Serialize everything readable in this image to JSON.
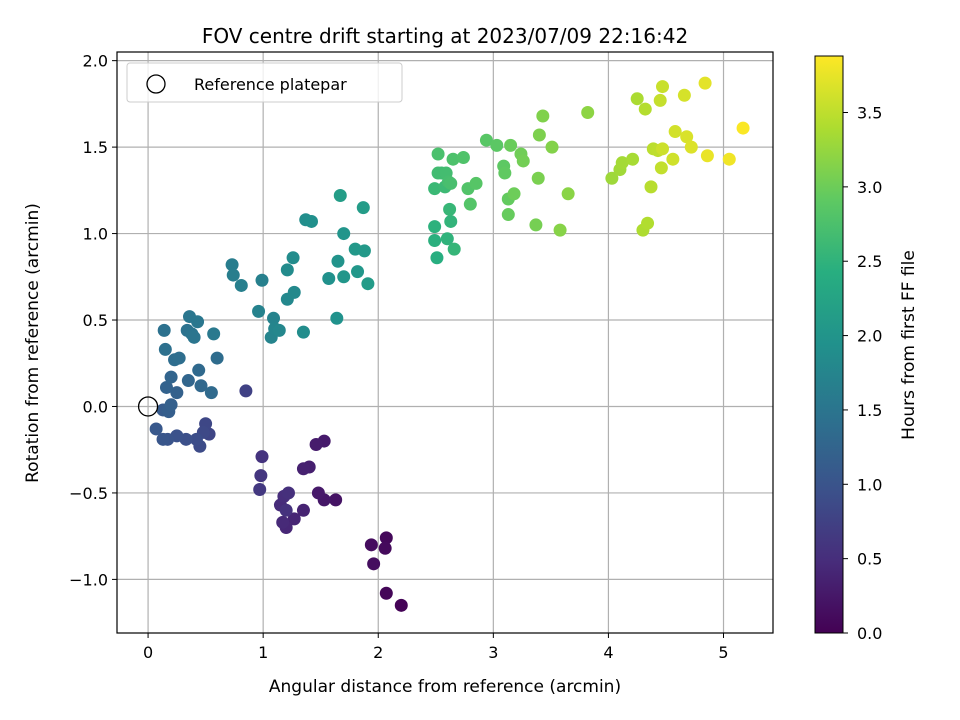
{
  "chart_data": {
    "type": "scatter",
    "title": "FOV centre drift starting at 2023/07/09 22:16:42",
    "xlabel": "Angular distance from reference (arcmin)",
    "ylabel": "Rotation from reference (arcmin)",
    "xlim": [
      -0.27,
      5.43
    ],
    "ylim": [
      -1.31,
      2.05
    ],
    "xticks": [
      0,
      1,
      2,
      3,
      4,
      5
    ],
    "xtick_labels": [
      "0",
      "1",
      "2",
      "3",
      "4",
      "5"
    ],
    "yticks": [
      -1.0,
      -0.5,
      0.0,
      0.5,
      1.0,
      1.5,
      2.0
    ],
    "ytick_labels": [
      "−1.0",
      "−0.5",
      "0.0",
      "0.5",
      "1.0",
      "1.5",
      "2.0"
    ],
    "grid": true,
    "legend": {
      "placement": "top-left",
      "label": "Reference platepar"
    },
    "reference_point": [
      0,
      0
    ],
    "colormap": "viridis",
    "colorbar": {
      "label": "Hours from first FF file",
      "range": [
        0.0,
        3.88
      ],
      "ticks": [
        0.0,
        0.5,
        1.0,
        1.5,
        2.0,
        2.5,
        3.0,
        3.5
      ],
      "tick_labels": [
        "0.0",
        "0.5",
        "1.0",
        "1.5",
        "2.0",
        "2.5",
        "3.0",
        "3.5"
      ]
    },
    "points": [
      [
        2.2,
        -1.15,
        0.02
      ],
      [
        2.07,
        -1.08,
        0.05
      ],
      [
        2.07,
        -0.76,
        0.08
      ],
      [
        2.06,
        -0.82,
        0.1
      ],
      [
        1.94,
        -0.8,
        0.12
      ],
      [
        1.96,
        -0.91,
        0.14
      ],
      [
        1.63,
        -0.54,
        0.2
      ],
      [
        1.53,
        -0.54,
        0.24
      ],
      [
        1.48,
        -0.5,
        0.26
      ],
      [
        1.53,
        -0.2,
        0.28
      ],
      [
        1.46,
        -0.22,
        0.3
      ],
      [
        1.4,
        -0.35,
        0.33
      ],
      [
        1.35,
        -0.36,
        0.35
      ],
      [
        1.35,
        -0.6,
        0.37
      ],
      [
        1.27,
        -0.65,
        0.4
      ],
      [
        1.2,
        -0.7,
        0.42
      ],
      [
        1.17,
        -0.67,
        0.45
      ],
      [
        1.15,
        -0.57,
        0.47
      ],
      [
        1.18,
        -0.52,
        0.5
      ],
      [
        1.22,
        -0.5,
        0.52
      ],
      [
        1.2,
        -0.6,
        0.55
      ],
      [
        0.99,
        -0.29,
        0.57
      ],
      [
        0.98,
        -0.4,
        0.6
      ],
      [
        0.97,
        -0.48,
        0.63
      ],
      [
        0.85,
        0.09,
        0.75
      ],
      [
        0.53,
        -0.16,
        0.8
      ],
      [
        0.5,
        -0.1,
        0.83
      ],
      [
        0.48,
        -0.15,
        0.85
      ],
      [
        0.45,
        -0.23,
        0.88
      ],
      [
        0.42,
        -0.19,
        0.91
      ],
      [
        0.33,
        -0.19,
        0.94
      ],
      [
        0.25,
        -0.17,
        0.97
      ],
      [
        0.17,
        -0.19,
        1.0
      ],
      [
        0.13,
        -0.19,
        1.03
      ],
      [
        0.07,
        -0.13,
        1.06
      ],
      [
        0.13,
        -0.02,
        1.1
      ],
      [
        0.17,
        -0.02,
        1.13
      ],
      [
        0.18,
        -0.03,
        1.15
      ],
      [
        0.2,
        0.01,
        1.18
      ],
      [
        0.25,
        0.08,
        1.2
      ],
      [
        0.16,
        0.11,
        1.22
      ],
      [
        0.2,
        0.17,
        1.25
      ],
      [
        0.35,
        0.15,
        1.27
      ],
      [
        0.46,
        0.12,
        1.3
      ],
      [
        0.44,
        0.21,
        1.32
      ],
      [
        0.55,
        0.08,
        1.34
      ],
      [
        0.6,
        0.28,
        1.36
      ],
      [
        0.23,
        0.27,
        1.38
      ],
      [
        0.27,
        0.28,
        1.4
      ],
      [
        0.15,
        0.33,
        1.42
      ],
      [
        0.14,
        0.44,
        1.44
      ],
      [
        0.34,
        0.44,
        1.46
      ],
      [
        0.38,
        0.42,
        1.48
      ],
      [
        0.4,
        0.4,
        1.5
      ],
      [
        0.36,
        0.52,
        1.52
      ],
      [
        0.43,
        0.49,
        1.54
      ],
      [
        0.57,
        0.42,
        1.56
      ],
      [
        0.73,
        0.82,
        1.62
      ],
      [
        0.74,
        0.76,
        1.64
      ],
      [
        0.81,
        0.7,
        1.66
      ],
      [
        0.99,
        0.73,
        1.68
      ],
      [
        0.96,
        0.55,
        1.7
      ],
      [
        1.09,
        0.51,
        1.72
      ],
      [
        1.07,
        0.4,
        1.74
      ],
      [
        1.1,
        0.45,
        1.76
      ],
      [
        1.14,
        0.44,
        1.78
      ],
      [
        1.21,
        0.62,
        1.8
      ],
      [
        1.27,
        0.66,
        1.82
      ],
      [
        1.21,
        0.79,
        1.84
      ],
      [
        1.26,
        0.86,
        1.86
      ],
      [
        1.35,
        0.43,
        1.88
      ],
      [
        1.37,
        1.08,
        1.9
      ],
      [
        1.42,
        1.07,
        1.92
      ],
      [
        1.57,
        0.74,
        1.94
      ],
      [
        1.64,
        0.51,
        1.96
      ],
      [
        1.65,
        0.84,
        1.98
      ],
      [
        1.7,
        1.0,
        2.0
      ],
      [
        1.7,
        0.75,
        2.02
      ],
      [
        1.82,
        0.78,
        2.04
      ],
      [
        1.8,
        0.91,
        2.06
      ],
      [
        1.88,
        0.9,
        2.08
      ],
      [
        1.91,
        0.71,
        2.1
      ],
      [
        1.87,
        1.15,
        2.12
      ],
      [
        1.67,
        1.22,
        2.14
      ],
      [
        2.51,
        0.86,
        2.42
      ],
      [
        2.49,
        0.96,
        2.45
      ],
      [
        2.49,
        1.04,
        2.47
      ],
      [
        2.6,
        0.97,
        2.5
      ],
      [
        2.63,
        1.07,
        2.52
      ],
      [
        2.66,
        0.91,
        2.55
      ],
      [
        2.62,
        1.14,
        2.57
      ],
      [
        2.49,
        1.26,
        2.6
      ],
      [
        2.58,
        1.27,
        2.62
      ],
      [
        2.55,
        1.35,
        2.64
      ],
      [
        2.52,
        1.35,
        2.66
      ],
      [
        2.59,
        1.35,
        2.68
      ],
      [
        2.61,
        1.3,
        2.7
      ],
      [
        2.63,
        1.29,
        2.72
      ],
      [
        2.52,
        1.46,
        2.74
      ],
      [
        2.65,
        1.43,
        2.76
      ],
      [
        2.74,
        1.44,
        2.78
      ],
      [
        2.78,
        1.26,
        2.8
      ],
      [
        2.8,
        1.17,
        2.82
      ],
      [
        2.85,
        1.29,
        2.84
      ],
      [
        2.94,
        1.54,
        2.86
      ],
      [
        3.03,
        1.51,
        2.88
      ],
      [
        3.09,
        1.39,
        2.9
      ],
      [
        3.1,
        1.35,
        2.92
      ],
      [
        3.13,
        1.2,
        2.94
      ],
      [
        3.13,
        1.11,
        2.96
      ],
      [
        3.15,
        1.51,
        2.98
      ],
      [
        3.18,
        1.23,
        3.0
      ],
      [
        3.24,
        1.46,
        3.02
      ],
      [
        3.26,
        1.42,
        3.04
      ],
      [
        3.37,
        1.05,
        3.06
      ],
      [
        3.39,
        1.32,
        3.08
      ],
      [
        3.4,
        1.57,
        3.1
      ],
      [
        3.43,
        1.68,
        3.12
      ],
      [
        3.51,
        1.5,
        3.14
      ],
      [
        3.58,
        1.02,
        3.16
      ],
      [
        3.65,
        1.23,
        3.18
      ],
      [
        3.82,
        1.7,
        3.2
      ],
      [
        4.03,
        1.32,
        3.3
      ],
      [
        4.1,
        1.37,
        3.32
      ],
      [
        4.12,
        1.41,
        3.34
      ],
      [
        4.21,
        1.43,
        3.36
      ],
      [
        4.25,
        1.78,
        3.38
      ],
      [
        4.3,
        1.02,
        3.4
      ],
      [
        4.34,
        1.06,
        3.42
      ],
      [
        4.32,
        1.72,
        3.44
      ],
      [
        4.37,
        1.27,
        3.46
      ],
      [
        4.39,
        1.49,
        3.48
      ],
      [
        4.43,
        1.48,
        3.5
      ],
      [
        4.46,
        1.38,
        3.52
      ],
      [
        4.45,
        1.77,
        3.54
      ],
      [
        4.47,
        1.85,
        3.56
      ],
      [
        4.47,
        1.49,
        3.58
      ],
      [
        4.56,
        1.43,
        3.6
      ],
      [
        4.58,
        1.59,
        3.62
      ],
      [
        4.66,
        1.8,
        3.64
      ],
      [
        4.68,
        1.56,
        3.66
      ],
      [
        4.72,
        1.5,
        3.68
      ],
      [
        4.84,
        1.87,
        3.72
      ],
      [
        4.86,
        1.45,
        3.76
      ],
      [
        5.05,
        1.43,
        3.8
      ],
      [
        5.17,
        1.61,
        3.86
      ]
    ]
  }
}
